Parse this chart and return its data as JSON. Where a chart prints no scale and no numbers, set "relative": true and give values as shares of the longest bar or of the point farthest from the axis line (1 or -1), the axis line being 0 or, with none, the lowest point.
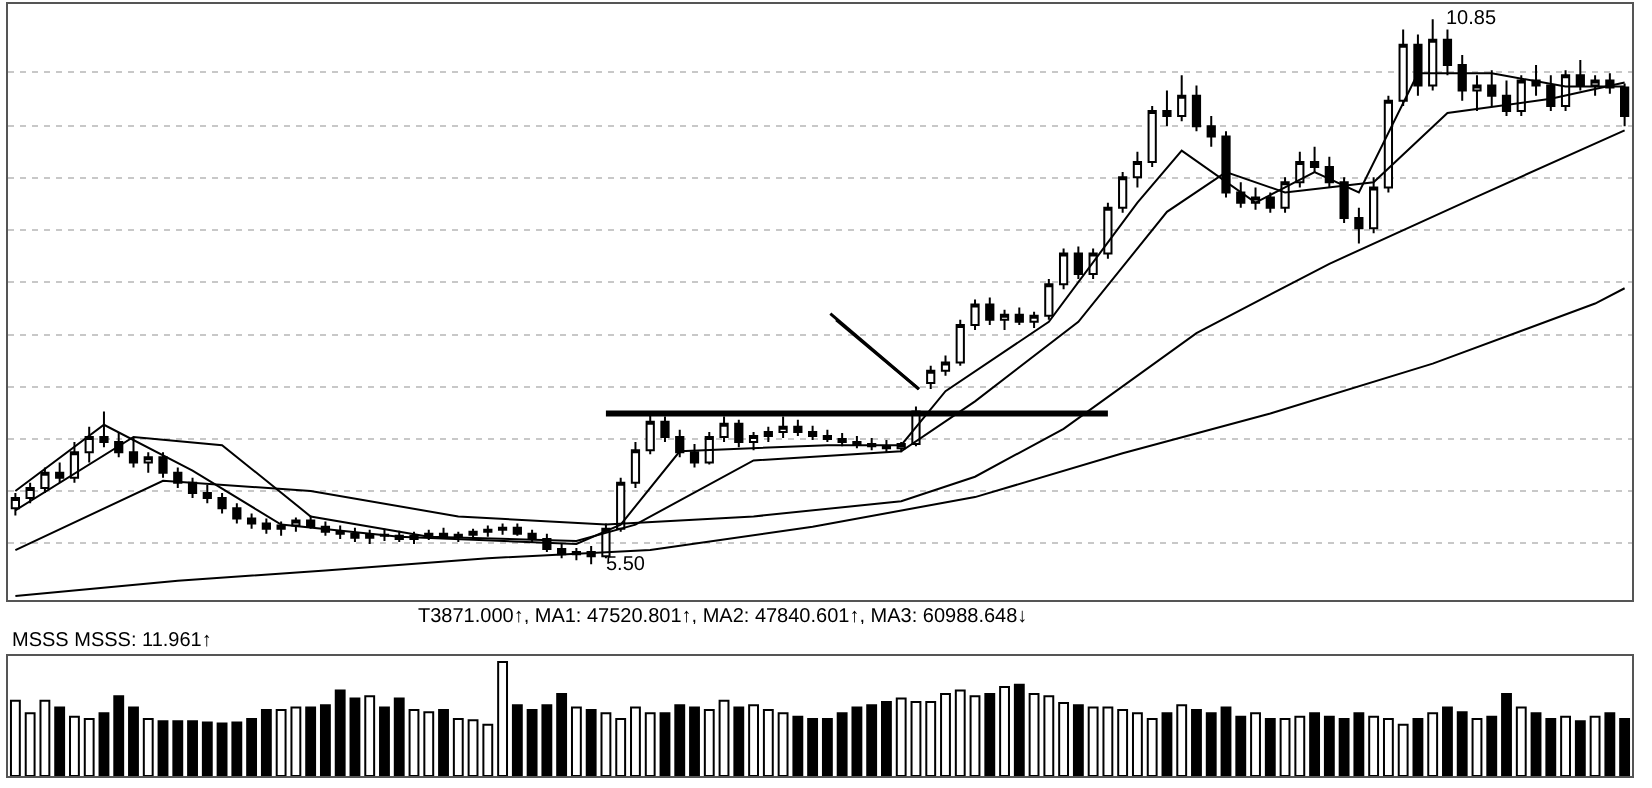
{
  "chart_data": [
    {
      "type": "candlestick",
      "color": "#000000",
      "ylim": [
        5.15,
        11.0
      ],
      "grid": "y",
      "yticks": [
        {
          "value": 5.71,
          "label": null
        },
        {
          "value": 6.22,
          "label": null
        },
        {
          "value": 6.73,
          "label": null
        },
        {
          "value": 7.24,
          "label": null
        },
        {
          "value": 7.75,
          "label": null
        },
        {
          "value": 8.27,
          "label": null
        },
        {
          "value": 8.78,
          "label": null
        },
        {
          "value": 9.29,
          "label": null
        },
        {
          "value": 9.8,
          "label": null
        },
        {
          "value": 10.33,
          "label": null
        }
      ],
      "categories": [
        null,
        null,
        null,
        null,
        null,
        null,
        null,
        null,
        null,
        null,
        null,
        null,
        null,
        null,
        null,
        null,
        null,
        null,
        null,
        null,
        null,
        null,
        null,
        null,
        null,
        null,
        null,
        null,
        null,
        null,
        null,
        null,
        null,
        null,
        null,
        null,
        null,
        null,
        null,
        null,
        null,
        null,
        null,
        null,
        null,
        null,
        null,
        null,
        null,
        null,
        null,
        null,
        null,
        null,
        null,
        null,
        null,
        null,
        null,
        null,
        null,
        null,
        null,
        null,
        null,
        null,
        null,
        null,
        null,
        null,
        null,
        null,
        null,
        null,
        null,
        null,
        null,
        null,
        null,
        null,
        null,
        null,
        null,
        null,
        null,
        null,
        null,
        null,
        null,
        null,
        null,
        null,
        null,
        null,
        null,
        null,
        null,
        null,
        null,
        null,
        null,
        null,
        null,
        null,
        null,
        null,
        null,
        null,
        null,
        null
      ],
      "ohlc": [
        [
          6.05,
          6.2,
          5.98,
          6.15
        ],
        [
          6.15,
          6.3,
          6.1,
          6.25
        ],
        [
          6.25,
          6.45,
          6.2,
          6.4
        ],
        [
          6.4,
          6.5,
          6.3,
          6.35
        ],
        [
          6.35,
          6.7,
          6.3,
          6.6
        ],
        [
          6.6,
          6.85,
          6.5,
          6.75
        ],
        [
          6.75,
          7.0,
          6.65,
          6.7
        ],
        [
          6.7,
          6.8,
          6.55,
          6.6
        ],
        [
          6.6,
          6.75,
          6.45,
          6.5
        ],
        [
          6.5,
          6.6,
          6.4,
          6.55
        ],
        [
          6.55,
          6.6,
          6.35,
          6.4
        ],
        [
          6.4,
          6.45,
          6.25,
          6.3
        ],
        [
          6.3,
          6.35,
          6.15,
          6.2
        ],
        [
          6.2,
          6.28,
          6.1,
          6.15
        ],
        [
          6.15,
          6.2,
          6.0,
          6.05
        ],
        [
          6.05,
          6.1,
          5.9,
          5.95
        ],
        [
          5.95,
          6.0,
          5.85,
          5.9
        ],
        [
          5.9,
          5.95,
          5.8,
          5.85
        ],
        [
          5.85,
          5.92,
          5.78,
          5.88
        ],
        [
          5.88,
          5.96,
          5.82,
          5.93
        ],
        [
          5.93,
          5.98,
          5.85,
          5.87
        ],
        [
          5.87,
          5.92,
          5.78,
          5.82
        ],
        [
          5.82,
          5.88,
          5.75,
          5.8
        ],
        [
          5.8,
          5.86,
          5.72,
          5.76
        ],
        [
          5.76,
          5.84,
          5.7,
          5.79
        ],
        [
          5.79,
          5.85,
          5.73,
          5.78
        ],
        [
          5.78,
          5.83,
          5.72,
          5.75
        ],
        [
          5.75,
          5.82,
          5.7,
          5.78
        ],
        [
          5.78,
          5.84,
          5.74,
          5.8
        ],
        [
          5.8,
          5.86,
          5.75,
          5.77
        ],
        [
          5.77,
          5.82,
          5.72,
          5.79
        ],
        [
          5.79,
          5.85,
          5.74,
          5.82
        ],
        [
          5.82,
          5.88,
          5.77,
          5.84
        ],
        [
          5.84,
          5.9,
          5.79,
          5.86
        ],
        [
          5.86,
          5.9,
          5.78,
          5.8
        ],
        [
          5.8,
          5.84,
          5.72,
          5.75
        ],
        [
          5.75,
          5.8,
          5.62,
          5.65
        ],
        [
          5.65,
          5.7,
          5.56,
          5.6
        ],
        [
          5.6,
          5.66,
          5.54,
          5.62
        ],
        [
          5.62,
          5.68,
          5.5,
          5.58
        ],
        [
          5.58,
          5.9,
          5.56,
          5.85
        ],
        [
          5.85,
          6.35,
          5.82,
          6.3
        ],
        [
          6.3,
          6.7,
          6.25,
          6.62
        ],
        [
          6.62,
          7.0,
          6.58,
          6.9
        ],
        [
          6.9,
          6.95,
          6.7,
          6.75
        ],
        [
          6.75,
          6.82,
          6.55,
          6.6
        ],
        [
          6.6,
          6.68,
          6.45,
          6.5
        ],
        [
          6.5,
          6.8,
          6.48,
          6.75
        ],
        [
          6.75,
          6.95,
          6.7,
          6.88
        ],
        [
          6.88,
          6.92,
          6.65,
          6.7
        ],
        [
          6.7,
          6.8,
          6.62,
          6.76
        ],
        [
          6.76,
          6.85,
          6.7,
          6.8
        ],
        [
          6.8,
          6.95,
          6.74,
          6.85
        ],
        [
          6.85,
          6.92,
          6.76,
          6.8
        ],
        [
          6.8,
          6.86,
          6.72,
          6.76
        ],
        [
          6.76,
          6.82,
          6.7,
          6.73
        ],
        [
          6.73,
          6.79,
          6.66,
          6.7
        ],
        [
          6.7,
          6.76,
          6.64,
          6.68
        ],
        [
          6.68,
          6.74,
          6.62,
          6.66
        ],
        [
          6.66,
          6.72,
          6.6,
          6.64
        ],
        [
          6.64,
          6.7,
          6.6,
          6.68
        ],
        [
          6.68,
          7.05,
          6.66,
          7.0
        ],
        [
          7.28,
          7.45,
          7.22,
          7.4
        ],
        [
          7.4,
          7.55,
          7.35,
          7.48
        ],
        [
          7.48,
          7.9,
          7.45,
          7.85
        ],
        [
          7.85,
          8.1,
          7.8,
          8.05
        ],
        [
          8.05,
          8.12,
          7.85,
          7.9
        ],
        [
          7.9,
          8.0,
          7.8,
          7.95
        ],
        [
          7.95,
          8.02,
          7.85,
          7.88
        ],
        [
          7.88,
          7.98,
          7.82,
          7.94
        ],
        [
          7.94,
          8.3,
          7.9,
          8.25
        ],
        [
          8.25,
          8.6,
          8.2,
          8.55
        ],
        [
          8.55,
          8.62,
          8.3,
          8.35
        ],
        [
          8.35,
          8.6,
          8.3,
          8.55
        ],
        [
          8.55,
          9.05,
          8.5,
          9.0
        ],
        [
          9.0,
          9.35,
          8.95,
          9.3
        ],
        [
          9.3,
          9.55,
          9.2,
          9.45
        ],
        [
          9.45,
          10.0,
          9.4,
          9.95
        ],
        [
          9.95,
          10.15,
          9.8,
          9.9
        ],
        [
          9.9,
          10.3,
          9.85,
          10.1
        ],
        [
          10.1,
          10.2,
          9.75,
          9.8
        ],
        [
          9.8,
          9.9,
          9.6,
          9.7
        ],
        [
          9.7,
          9.75,
          9.1,
          9.15
        ],
        [
          9.15,
          9.25,
          9.0,
          9.05
        ],
        [
          9.05,
          9.2,
          8.98,
          9.1
        ],
        [
          9.1,
          9.15,
          8.95,
          9.0
        ],
        [
          9.0,
          9.3,
          8.95,
          9.25
        ],
        [
          9.25,
          9.55,
          9.2,
          9.45
        ],
        [
          9.45,
          9.6,
          9.35,
          9.4
        ],
        [
          9.4,
          9.5,
          9.2,
          9.25
        ],
        [
          9.25,
          9.3,
          8.85,
          8.9
        ],
        [
          8.9,
          9.0,
          8.65,
          8.8
        ],
        [
          8.8,
          9.3,
          8.75,
          9.2
        ],
        [
          9.2,
          10.1,
          9.15,
          10.05
        ],
        [
          10.05,
          10.75,
          10.0,
          10.6
        ],
        [
          10.6,
          10.7,
          10.1,
          10.2
        ],
        [
          10.2,
          10.85,
          10.15,
          10.65
        ],
        [
          10.65,
          10.75,
          10.3,
          10.4
        ],
        [
          10.4,
          10.5,
          10.05,
          10.15
        ],
        [
          10.15,
          10.3,
          9.95,
          10.2
        ],
        [
          10.2,
          10.35,
          10.0,
          10.1
        ],
        [
          10.1,
          10.25,
          9.9,
          9.95
        ],
        [
          9.95,
          10.3,
          9.9,
          10.25
        ],
        [
          10.25,
          10.4,
          10.1,
          10.2
        ],
        [
          10.2,
          10.3,
          9.95,
          10.0
        ],
        [
          10.0,
          10.35,
          9.95,
          10.3
        ],
        [
          10.3,
          10.45,
          10.15,
          10.2
        ],
        [
          10.2,
          10.3,
          10.1,
          10.25
        ],
        [
          10.25,
          10.32,
          10.12,
          10.18
        ],
        [
          10.18,
          10.22,
          9.8,
          9.9
        ]
      ],
      "series": [
        {
          "type": "line",
          "color": "#000000",
          "values": [
            6.22,
            null,
            null,
            null,
            null,
            null,
            6.87,
            null,
            null,
            null,
            null,
            null,
            6.42,
            null,
            null,
            null,
            null,
            null,
            5.89,
            null,
            null,
            null,
            null,
            null,
            null,
            null,
            5.77,
            null,
            null,
            null,
            null,
            null,
            null,
            null,
            null,
            null,
            null,
            null,
            5.7,
            null,
            null,
            5.89,
            null,
            null,
            null,
            6.61,
            null,
            null,
            null,
            null,
            null,
            null,
            null,
            null,
            null,
            6.67,
            null,
            null,
            null,
            null,
            6.67,
            null,
            null,
            7.2,
            null,
            null,
            null,
            null,
            null,
            null,
            7.88,
            null,
            null,
            null,
            null,
            null,
            9.05,
            null,
            null,
            9.56,
            null,
            null,
            null,
            null,
            9.05,
            null,
            null,
            null,
            9.35,
            null,
            null,
            9.15,
            null,
            null,
            null,
            10.32,
            null,
            null,
            null,
            null,
            10.32,
            null,
            null,
            null,
            null,
            10.19,
            null,
            null,
            null,
            10.19
          ]
        },
        {
          "type": "line",
          "color": "#000000",
          "values": [
            6.03,
            null,
            null,
            null,
            null,
            null,
            null,
            null,
            6.75,
            null,
            null,
            null,
            null,
            null,
            6.67,
            null,
            null,
            null,
            null,
            null,
            5.97,
            null,
            null,
            null,
            null,
            null,
            null,
            null,
            5.77,
            null,
            null,
            null,
            null,
            null,
            null,
            null,
            null,
            null,
            5.73,
            null,
            null,
            null,
            5.89,
            null,
            null,
            null,
            null,
            null,
            null,
            null,
            6.52,
            null,
            null,
            null,
            null,
            null,
            null,
            null,
            null,
            null,
            6.61,
            null,
            null,
            null,
            null,
            7.1,
            null,
            null,
            null,
            null,
            null,
            null,
            7.88,
            null,
            null,
            null,
            null,
            null,
            8.96,
            null,
            null,
            null,
            9.35,
            null,
            null,
            null,
            9.15,
            null,
            null,
            null,
            null,
            null,
            9.25,
            null,
            null,
            null,
            null,
            9.93,
            null,
            null,
            null,
            null,
            null,
            null,
            10.07,
            null,
            null,
            null,
            null,
            10.23
          ]
        },
        {
          "type": "line",
          "color": "#000000",
          "values": [
            5.64,
            null,
            null,
            null,
            null,
            null,
            null,
            null,
            null,
            null,
            6.32,
            null,
            null,
            null,
            null,
            null,
            null,
            null,
            null,
            null,
            6.22,
            null,
            null,
            null,
            null,
            null,
            null,
            null,
            null,
            null,
            5.97,
            null,
            null,
            null,
            null,
            null,
            null,
            null,
            null,
            null,
            5.89,
            null,
            null,
            null,
            null,
            null,
            null,
            null,
            null,
            null,
            5.97,
            null,
            null,
            null,
            null,
            null,
            null,
            null,
            null,
            null,
            6.12,
            null,
            null,
            null,
            null,
            6.36,
            null,
            null,
            null,
            null,
            null,
            6.83,
            null,
            null,
            null,
            null,
            null,
            null,
            null,
            null,
            7.77,
            null,
            null,
            null,
            null,
            null,
            null,
            null,
            null,
            8.45,
            null,
            null,
            null,
            null,
            null,
            null,
            null,
            null,
            null,
            9.11,
            null,
            null,
            null,
            null,
            null,
            null,
            null,
            null,
            null,
            9.76
          ]
        },
        {
          "type": "line",
          "color": "#000000",
          "values": [
            5.19,
            null,
            null,
            null,
            null,
            null,
            null,
            null,
            null,
            null,
            null,
            5.34,
            null,
            null,
            null,
            null,
            null,
            null,
            null,
            null,
            null,
            5.44,
            null,
            null,
            null,
            null,
            null,
            null,
            null,
            null,
            null,
            null,
            5.56,
            null,
            null,
            null,
            null,
            null,
            null,
            null,
            null,
            null,
            null,
            5.64,
            null,
            null,
            null,
            null,
            null,
            null,
            null,
            null,
            null,
            null,
            5.87,
            null,
            null,
            null,
            null,
            null,
            null,
            null,
            null,
            null,
            null,
            6.16,
            null,
            null,
            null,
            null,
            null,
            null,
            null,
            null,
            null,
            6.59,
            null,
            null,
            null,
            null,
            null,
            null,
            null,
            null,
            null,
            6.98,
            null,
            null,
            null,
            null,
            null,
            null,
            null,
            null,
            null,
            null,
            7.47,
            null,
            null,
            null,
            null,
            null,
            null,
            null,
            null,
            null,
            null,
            8.06,
            null,
            8.21
          ]
        },
        {
          "type": "line",
          "color": "#000000",
          "values": [
            null,
            null,
            null,
            null,
            null,
            null,
            null,
            null,
            null,
            null,
            null,
            null,
            null,
            null,
            null,
            null,
            null,
            null,
            null,
            null,
            null,
            null,
            null,
            null,
            null,
            null,
            null,
            null,
            null,
            null,
            null,
            null,
            null,
            null,
            null,
            null,
            null,
            null,
            null,
            null,
            6.98,
            null,
            null,
            null,
            null,
            null,
            null,
            null,
            null,
            null,
            null,
            null,
            null,
            null,
            null,
            null,
            null,
            null,
            null,
            null,
            null,
            null,
            null,
            null,
            null,
            null,
            null,
            null,
            null,
            null,
            null,
            null,
            null,
            null,
            6.98,
            null,
            null,
            null,
            null,
            null,
            null,
            null,
            null,
            null,
            null,
            null,
            null,
            null,
            null,
            null,
            null,
            null,
            null,
            null,
            null,
            null,
            null,
            null,
            null,
            null,
            null,
            null,
            null,
            null,
            null,
            null,
            null,
            null,
            null,
            null
          ]
        }
      ],
      "annotations": [
        "5.50",
        "10.85",
        "T3871.000↑, MA1: 47520.801↑, MA2: 47840.601↑, MA3: 60988.648↓"
      ]
    },
    {
      "type": "bar",
      "relative": true,
      "categories": [
        null,
        null,
        null,
        null,
        null,
        null,
        null,
        null,
        null,
        null,
        null,
        null,
        null,
        null,
        null,
        null,
        null,
        null,
        null,
        null,
        null,
        null,
        null,
        null,
        null,
        null,
        null,
        null,
        null,
        null,
        null,
        null,
        null,
        null,
        null,
        null,
        null,
        null,
        null,
        null,
        null,
        null,
        null,
        null,
        null,
        null,
        null,
        null,
        null,
        null,
        null,
        null,
        null,
        null,
        null,
        null,
        null,
        null,
        null,
        null,
        null,
        null,
        null,
        null,
        null,
        null,
        null,
        null,
        null,
        null,
        null,
        null,
        null,
        null,
        null,
        null,
        null,
        null,
        null,
        null,
        null,
        null,
        null,
        null,
        null,
        null,
        null,
        null,
        null,
        null,
        null,
        null,
        null,
        null,
        null,
        null,
        null,
        null,
        null,
        null,
        null,
        null,
        null,
        null,
        null,
        null,
        null,
        null,
        null,
        null
      ],
      "values": [
        0.66,
        0.55,
        0.66,
        0.6,
        0.52,
        0.5,
        0.55,
        0.7,
        0.6,
        0.5,
        0.48,
        0.48,
        0.48,
        0.47,
        0.46,
        0.47,
        0.5,
        0.58,
        0.58,
        0.6,
        0.6,
        0.62,
        0.75,
        0.68,
        0.7,
        0.6,
        0.68,
        0.58,
        0.56,
        0.58,
        0.5,
        0.49,
        0.45,
        1,
        0.62,
        0.58,
        0.62,
        0.72,
        0.6,
        0.58,
        0.55,
        0.5,
        0.6,
        0.55,
        0.55,
        0.62,
        0.6,
        0.58,
        0.66,
        0.6,
        0.62,
        0.58,
        0.55,
        0.52,
        0.5,
        0.5,
        0.55,
        0.6,
        0.62,
        0.65,
        0.68,
        0.65,
        0.65,
        0.72,
        0.75,
        0.7,
        0.72,
        0.78,
        0.8,
        0.72,
        0.7,
        0.64,
        0.62,
        0.6,
        0.6,
        0.58,
        0.55,
        0.5,
        0.55,
        0.62,
        0.58,
        0.55,
        0.6,
        0.52,
        0.55,
        0.5,
        0.5,
        0.52,
        0.55,
        0.52,
        0.5,
        0.55,
        0.52,
        0.5,
        0.45,
        0.5,
        0.55,
        0.6,
        0.56,
        0.5,
        0.52,
        0.72,
        0.6,
        0.55,
        0.5,
        0.52,
        0.48,
        0.52,
        0.55,
        0.5
      ],
      "colors": [
        "#ffffff",
        "#ffffff",
        "#ffffff",
        "#000000",
        "#ffffff",
        "#ffffff",
        "#000000",
        "#000000",
        "#000000",
        "#ffffff",
        "#000000",
        "#000000",
        "#000000",
        "#000000",
        "#000000",
        "#000000",
        "#000000",
        "#000000",
        "#ffffff",
        "#ffffff",
        "#000000",
        "#000000",
        "#000000",
        "#000000",
        "#ffffff",
        "#000000",
        "#000000",
        "#ffffff",
        "#ffffff",
        "#000000",
        "#ffffff",
        "#ffffff",
        "#ffffff",
        "#ffffff",
        "#000000",
        "#000000",
        "#000000",
        "#000000",
        "#ffffff",
        "#000000",
        "#ffffff",
        "#ffffff",
        "#ffffff",
        "#ffffff",
        "#000000",
        "#000000",
        "#000000",
        "#ffffff",
        "#ffffff",
        "#000000",
        "#ffffff",
        "#ffffff",
        "#ffffff",
        "#000000",
        "#000000",
        "#000000",
        "#000000",
        "#000000",
        "#000000",
        "#000000",
        "#ffffff",
        "#ffffff",
        "#ffffff",
        "#ffffff",
        "#ffffff",
        "#ffffff",
        "#000000",
        "#ffffff",
        "#000000",
        "#ffffff",
        "#ffffff",
        "#ffffff",
        "#000000",
        "#ffffff",
        "#ffffff",
        "#ffffff",
        "#ffffff",
        "#ffffff",
        "#000000",
        "#ffffff",
        "#000000",
        "#000000",
        "#000000",
        "#000000",
        "#ffffff",
        "#000000",
        "#ffffff",
        "#ffffff",
        "#000000",
        "#000000",
        "#000000",
        "#000000",
        "#ffffff",
        "#ffffff",
        "#ffffff",
        "#000000",
        "#ffffff",
        "#000000",
        "#000000",
        "#ffffff",
        "#000000",
        "#000000",
        "#ffffff",
        "#000000",
        "#000000",
        "#ffffff",
        "#000000",
        "#ffffff",
        "#000000",
        "#000000"
      ],
      "annotations": [
        "MSSS MSSS: 11.961↑"
      ]
    }
  ]
}
